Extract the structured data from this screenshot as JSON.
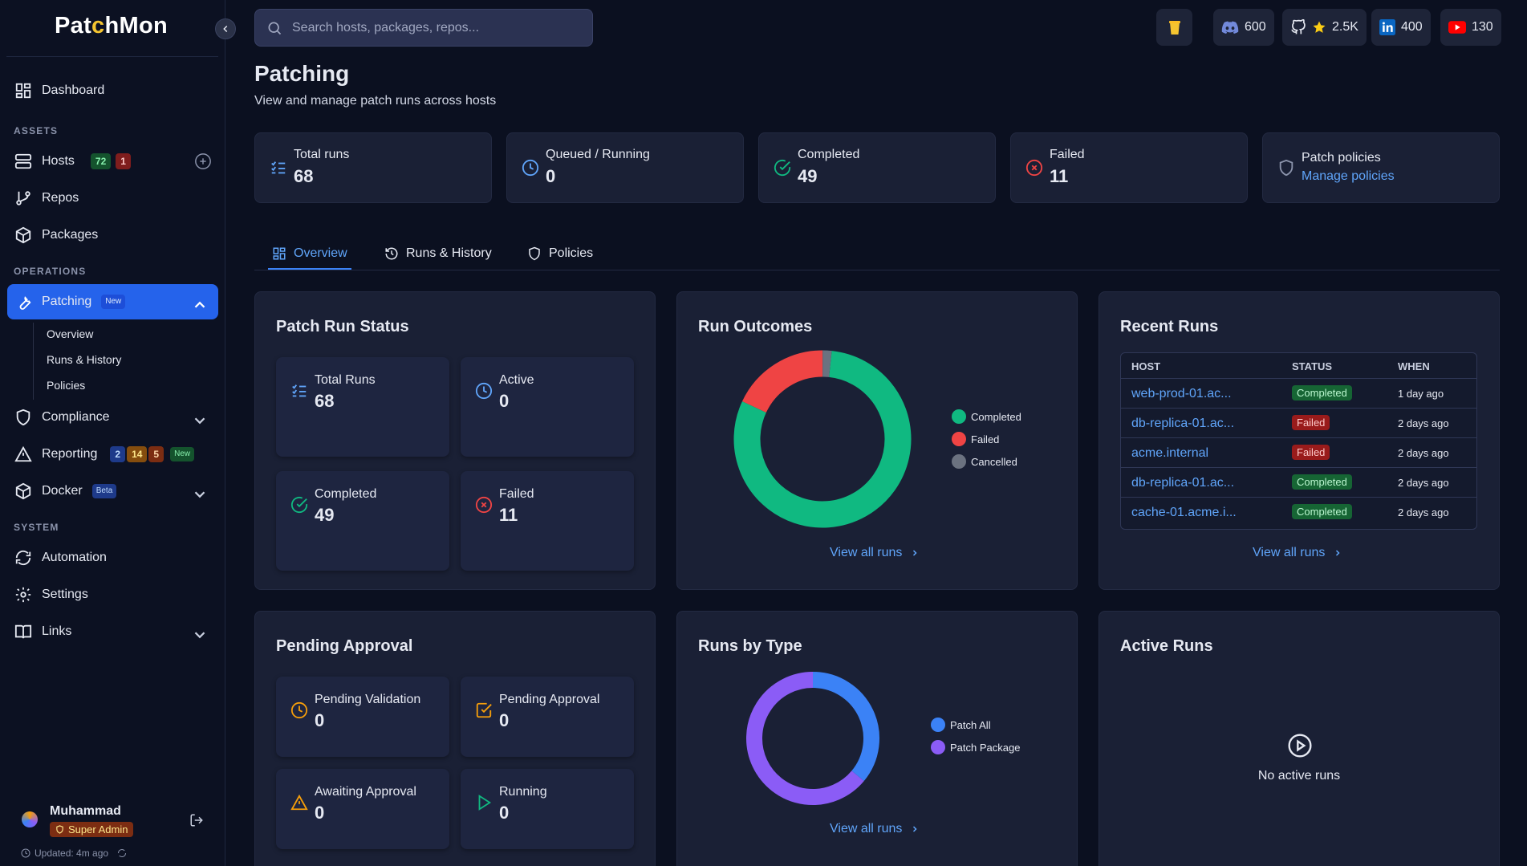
{
  "app": {
    "logo_prefix": "Pat",
    "logo_accent": "c",
    "logo_suffix": "hMon"
  },
  "search": {
    "placeholder": "Search hosts, packages, repos..."
  },
  "social": {
    "discord": "600",
    "github": "2.5K",
    "linkedin": "400",
    "youtube": "130"
  },
  "sidebar": {
    "dashboard": "Dashboard",
    "section_assets": "ASSETS",
    "hosts": "Hosts",
    "hosts_badge_up": "72",
    "hosts_badge_down": "1",
    "repos": "Repos",
    "packages": "Packages",
    "section_operations": "OPERATIONS",
    "patching": "Patching",
    "patching_badge": "New",
    "sub_overview": "Overview",
    "sub_runs": "Runs & History",
    "sub_policies": "Policies",
    "compliance": "Compliance",
    "reporting": "Reporting",
    "reporting_b1": "2",
    "reporting_b2": "14",
    "reporting_b3": "5",
    "reporting_badge": "New",
    "docker": "Docker",
    "docker_badge": "Beta",
    "section_system": "SYSTEM",
    "automation": "Automation",
    "settings": "Settings",
    "links": "Links"
  },
  "user": {
    "name": "Muhammad",
    "role": "Super Admin",
    "updated": "Updated: 4m ago"
  },
  "page": {
    "title": "Patching",
    "subtitle": "View and manage patch runs across hosts"
  },
  "stats": {
    "total_label": "Total runs",
    "total_value": "68",
    "queued_label": "Queued / Running",
    "queued_value": "0",
    "completed_label": "Completed",
    "completed_value": "49",
    "failed_label": "Failed",
    "failed_value": "11",
    "policies_label": "Patch policies",
    "policies_link": "Manage policies"
  },
  "tabs": {
    "overview": "Overview",
    "runs": "Runs & History",
    "policies": "Policies"
  },
  "status_panel": {
    "title": "Patch Run Status",
    "total_label": "Total Runs",
    "total_value": "68",
    "active_label": "Active",
    "active_value": "0",
    "completed_label": "Completed",
    "completed_value": "49",
    "failed_label": "Failed",
    "failed_value": "11"
  },
  "outcomes_panel": {
    "title": "Run Outcomes",
    "view_all": "View all runs"
  },
  "recent_panel": {
    "title": "Recent Runs",
    "col_host": "HOST",
    "col_status": "STATUS",
    "col_when": "WHEN",
    "rows": [
      {
        "host": "web-prod-01.ac...",
        "status": "Completed",
        "when": "1 day ago"
      },
      {
        "host": "db-replica-01.ac...",
        "status": "Failed",
        "when": "2 days ago"
      },
      {
        "host": "acme.internal",
        "status": "Failed",
        "when": "2 days ago"
      },
      {
        "host": "db-replica-01.ac...",
        "status": "Completed",
        "when": "2 days ago"
      },
      {
        "host": "cache-01.acme.i...",
        "status": "Completed",
        "when": "2 days ago"
      }
    ],
    "view_all": "View all runs"
  },
  "pending_panel": {
    "title": "Pending Approval",
    "validation_label": "Pending Validation",
    "validation_value": "0",
    "approval_label": "Pending Approval",
    "approval_value": "0",
    "awaiting_label": "Awaiting Approval",
    "awaiting_value": "0",
    "running_label": "Running",
    "running_value": "0"
  },
  "type_panel": {
    "title": "Runs by Type",
    "view_all": "View all runs"
  },
  "active_panel": {
    "title": "Active Runs",
    "empty": "No active runs"
  },
  "colors": {
    "completed": "#10b981",
    "failed": "#ef4444",
    "cancelled": "#6b7280",
    "patch_all": "#3b82f6",
    "patch_package": "#8b5cf6"
  },
  "chart_data": [
    {
      "type": "pie",
      "categories": [
        "Completed",
        "Failed",
        "Cancelled"
      ],
      "values": [
        49,
        11,
        1
      ]
    },
    {
      "type": "pie",
      "categories": [
        "Patch All",
        "Patch Package"
      ],
      "values": [
        22,
        39
      ]
    }
  ]
}
